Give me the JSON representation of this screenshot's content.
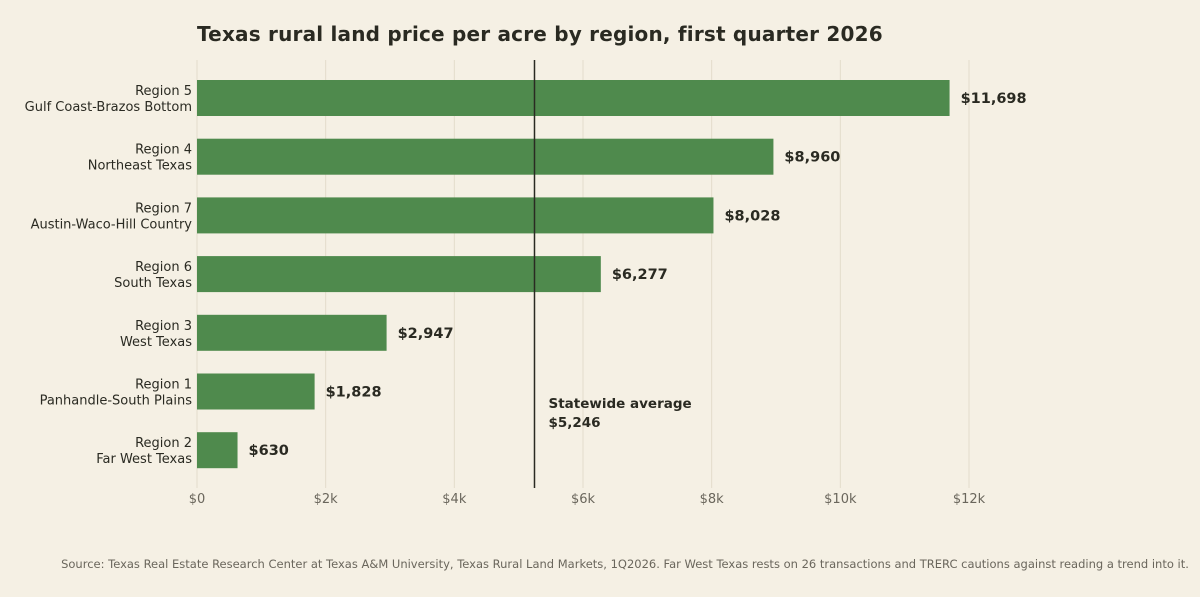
{
  "chart_data": {
    "type": "bar",
    "orientation": "horizontal",
    "title": "Texas rural land price per acre by region, first quarter 2026",
    "xlabel": "",
    "ylabel": "",
    "xlim": [
      0,
      12000
    ],
    "x_ticks": [
      0,
      2000,
      4000,
      6000,
      8000,
      10000,
      12000
    ],
    "x_tick_labels": [
      "$0",
      "$2k",
      "$4k",
      "$6k",
      "$8k",
      "$10k",
      "$12k"
    ],
    "grid": "vertical",
    "categories": [
      {
        "line1": "Region 5",
        "line2": "Gulf Coast-Brazos Bottom"
      },
      {
        "line1": "Region 4",
        "line2": "Northeast Texas"
      },
      {
        "line1": "Region 7",
        "line2": "Austin-Waco-Hill Country"
      },
      {
        "line1": "Region 6",
        "line2": "South Texas"
      },
      {
        "line1": "Region 3",
        "line2": "West Texas"
      },
      {
        "line1": "Region 1",
        "line2": "Panhandle-South Plains"
      },
      {
        "line1": "Region 2",
        "line2": "Far West Texas"
      }
    ],
    "values": [
      11698,
      8960,
      8028,
      6277,
      2947,
      1828,
      630
    ],
    "value_labels": [
      "$11,698",
      "$8,960",
      "$8,028",
      "$6,277",
      "$2,947",
      "$1,828",
      "$630"
    ],
    "reference_line": {
      "value": 5246,
      "label_line1": "Statewide average",
      "label_line2": "$5,246"
    },
    "colors": {
      "bar": "#4f8a4d",
      "reference_line": "#2a2a22",
      "grid": "#e3dccb",
      "background": "#f5f0e4"
    }
  },
  "source_note": "Source: Texas Real Estate Research Center at Texas A&M University, Texas Rural Land Markets, 1Q2026. Far West Texas rests on 26 transactions and TRERC cautions against reading a trend into it."
}
